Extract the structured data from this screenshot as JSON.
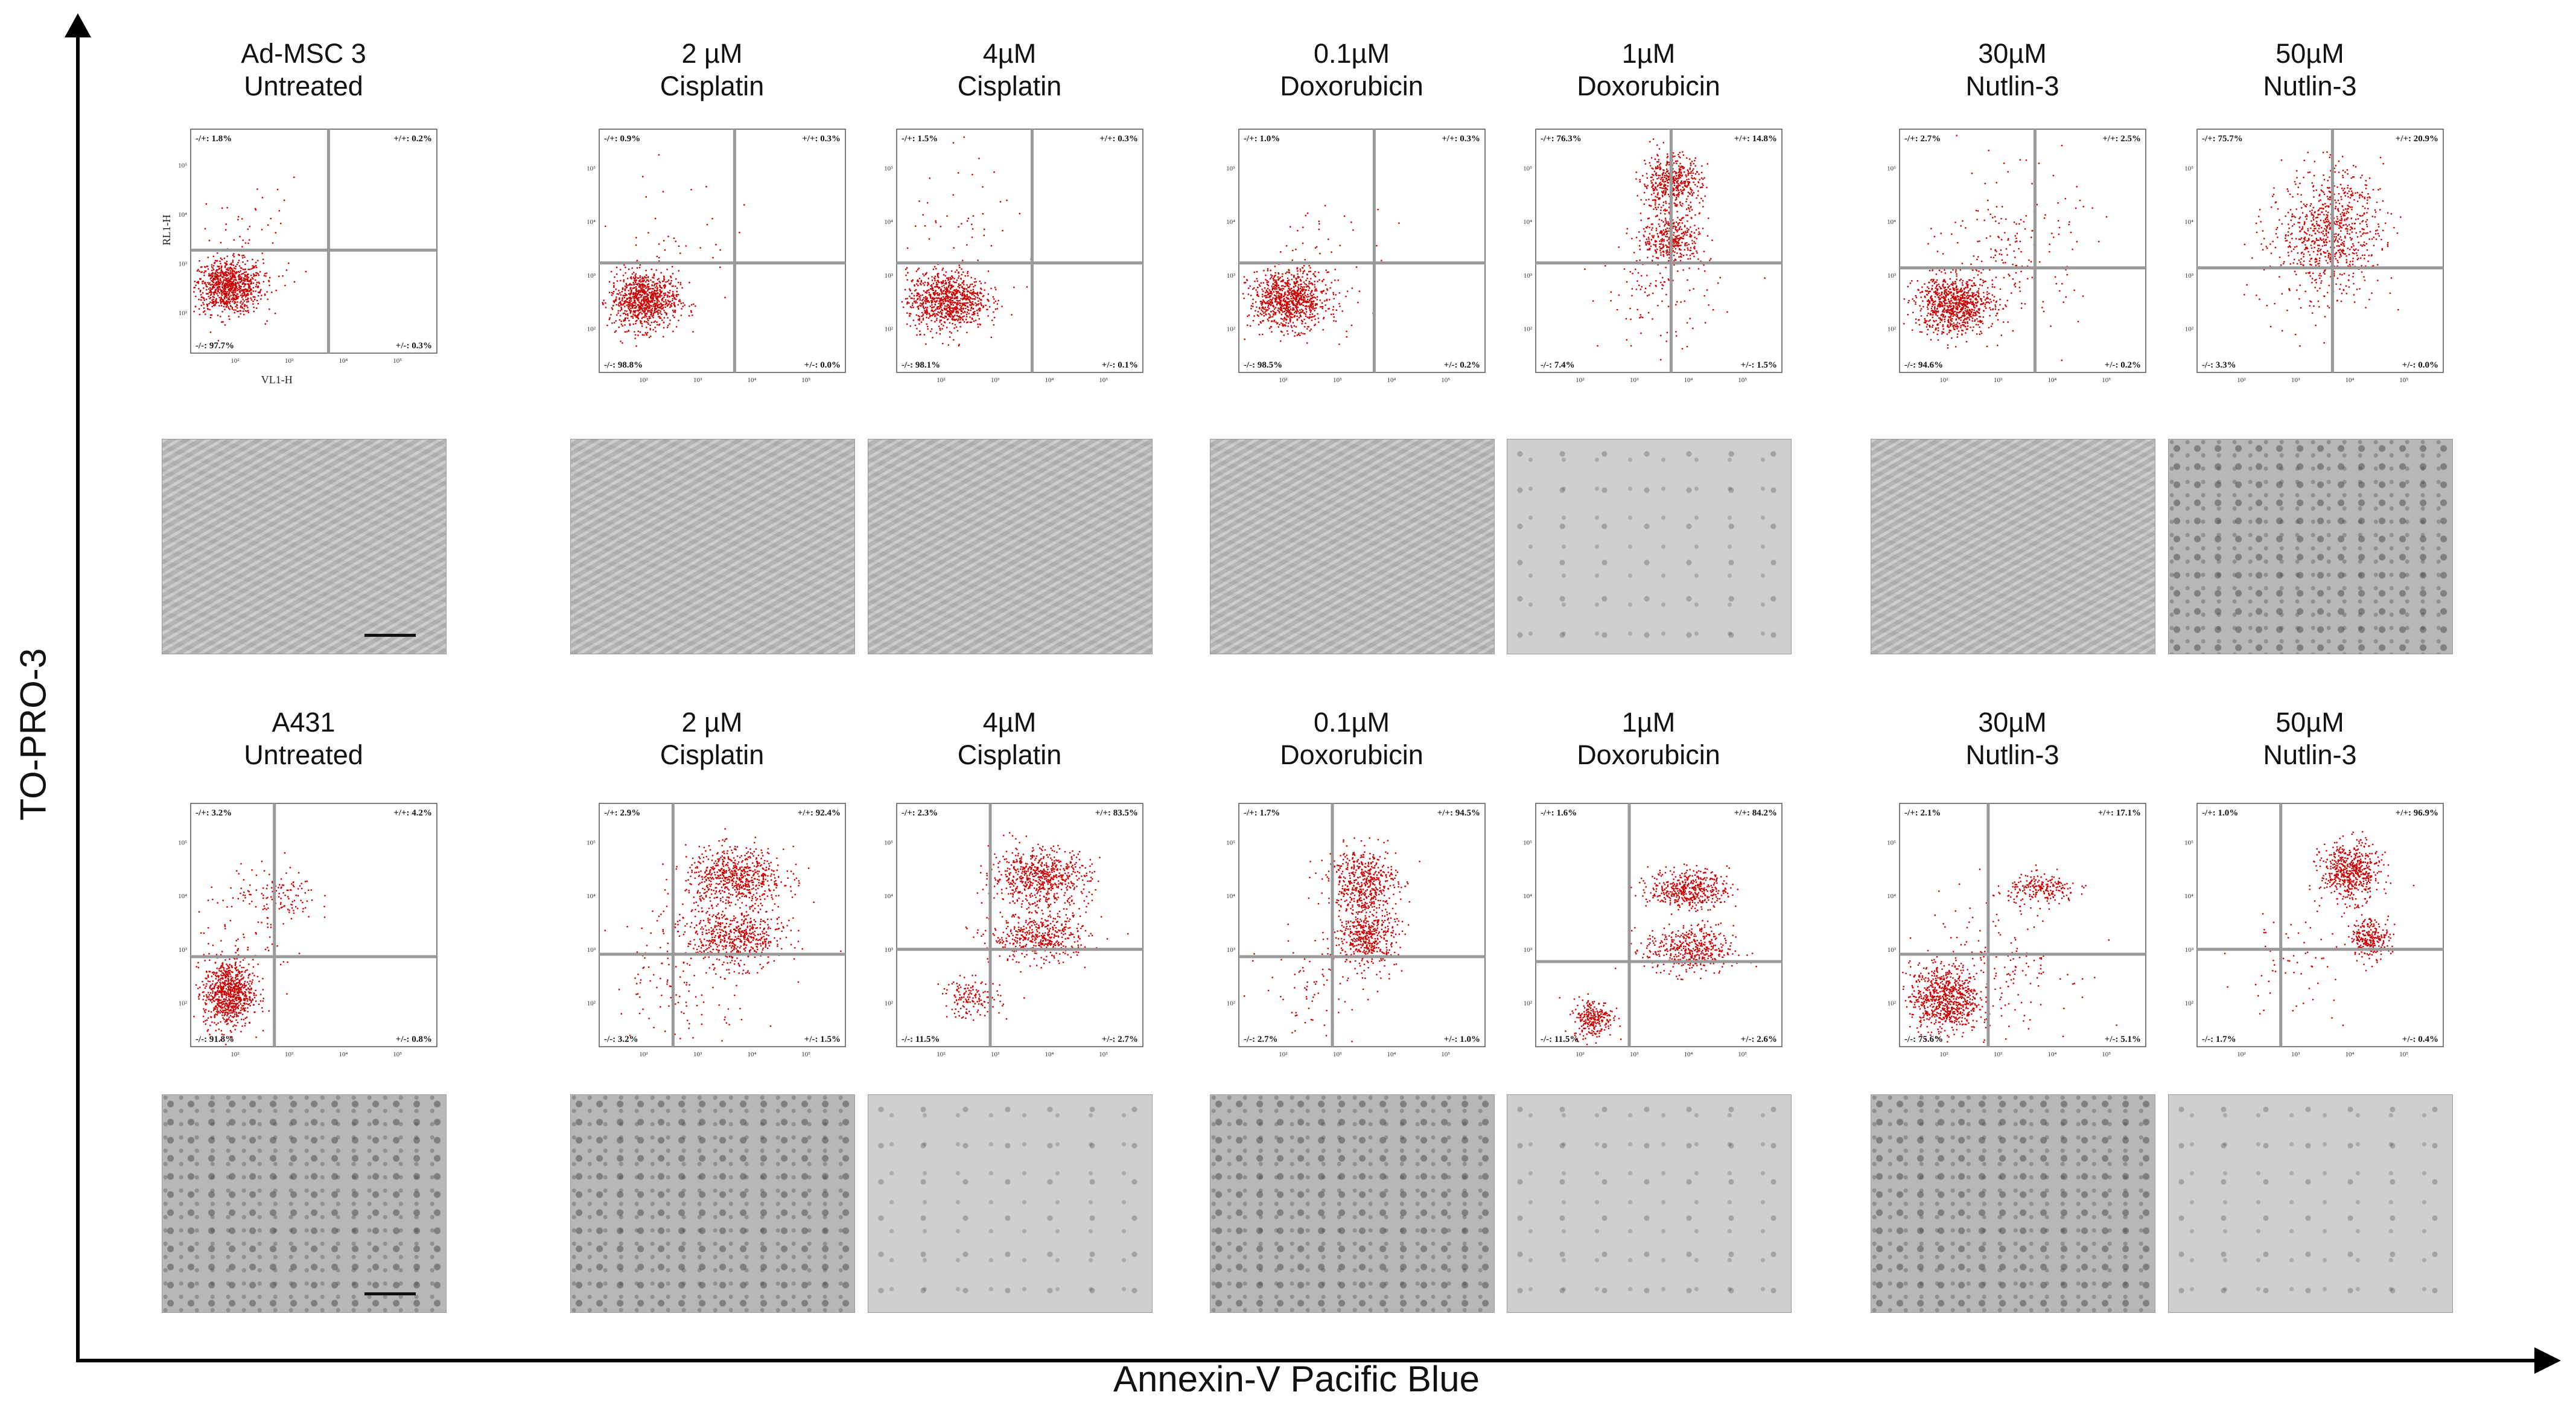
{
  "axes": {
    "y_label": "TO-PRO-3",
    "x_label": "Annexin-V Pacific Blue"
  },
  "colors": {
    "dots": "#cc0000",
    "gates": "#9a9a9a",
    "axis": "#000000"
  },
  "flow_axis": {
    "y_label": "RL1-H",
    "x_label": "VL1-H",
    "tick_exponents": [
      "10²",
      "10³",
      "10⁴",
      "10⁵",
      "10⁶"
    ]
  },
  "rows": [
    {
      "panels": [
        {
          "line1": "Ad-MSC 3",
          "line2": "Untreated",
          "q_ul": "-/+: 1.8%",
          "q_ur": "+/+: 0.2%",
          "q_ll": "-/-: 97.7%",
          "q_lr": "+/-: 0.3%"
        },
        {
          "line1": "2 µM",
          "line2": "Cisplatin",
          "q_ul": "-/+: 0.9%",
          "q_ur": "+/+: 0.3%",
          "q_ll": "-/-: 98.8%",
          "q_lr": "+/-: 0.0%"
        },
        {
          "line1": "4µM",
          "line2": "Cisplatin",
          "q_ul": "-/+: 1.5%",
          "q_ur": "+/+: 0.3%",
          "q_ll": "-/-: 98.1%",
          "q_lr": "+/-: 0.1%"
        },
        {
          "line1": "0.1µM",
          "line2": "Doxorubicin",
          "q_ul": "-/+: 1.0%",
          "q_ur": "+/+: 0.3%",
          "q_ll": "-/-: 98.5%",
          "q_lr": "+/-: 0.2%"
        },
        {
          "line1": "1µM",
          "line2": "Doxorubicin",
          "q_ul": "-/+: 76.3%",
          "q_ur": "+/+: 14.8%",
          "q_ll": "-/-: 7.4%",
          "q_lr": "+/-: 1.5%"
        },
        {
          "line1": "30µM",
          "line2": "Nutlin-3",
          "q_ul": "-/+: 2.7%",
          "q_ur": "+/+: 2.5%",
          "q_ll": "-/-: 94.6%",
          "q_lr": "+/-: 0.2%"
        },
        {
          "line1": "50µM",
          "line2": "Nutlin-3",
          "q_ul": "-/+: 75.7%",
          "q_ur": "+/+: 20.9%",
          "q_ll": "-/-: 3.3%",
          "q_lr": "+/-: 0.0%"
        }
      ]
    },
    {
      "panels": [
        {
          "line1": "A431",
          "line2": "Untreated",
          "q_ul": "-/+: 3.2%",
          "q_ur": "+/+: 4.2%",
          "q_ll": "-/-: 91.8%",
          "q_lr": "+/-: 0.8%"
        },
        {
          "line1": "2 µM",
          "line2": "Cisplatin",
          "q_ul": "-/+: 2.9%",
          "q_ur": "+/+: 92.4%",
          "q_ll": "-/-: 3.2%",
          "q_lr": "+/-: 1.5%"
        },
        {
          "line1": "4µM",
          "line2": "Cisplatin",
          "q_ul": "-/+: 2.3%",
          "q_ur": "+/+: 83.5%",
          "q_ll": "-/-: 11.5%",
          "q_lr": "+/-: 2.7%"
        },
        {
          "line1": "0.1µM",
          "line2": "Doxorubicin",
          "q_ul": "-/+: 1.7%",
          "q_ur": "+/+: 94.5%",
          "q_ll": "-/-: 2.7%",
          "q_lr": "+/-: 1.0%"
        },
        {
          "line1": "1µM",
          "line2": "Doxorubicin",
          "q_ul": "-/+: 1.6%",
          "q_ur": "+/+: 84.2%",
          "q_ll": "-/-: 11.5%",
          "q_lr": "+/-: 2.6%"
        },
        {
          "line1": "30µM",
          "line2": "Nutlin-3",
          "q_ul": "-/+: 2.1%",
          "q_ur": "+/+: 17.1%",
          "q_ll": "-/-: 75.6%",
          "q_lr": "+/-: 5.1%"
        },
        {
          "line1": "50µM",
          "line2": "Nutlin-3",
          "q_ul": "-/+: 1.0%",
          "q_ur": "+/+: 96.9%",
          "q_ll": "-/-: 1.7%",
          "q_lr": "+/-: 0.4%"
        }
      ]
    }
  ]
}
